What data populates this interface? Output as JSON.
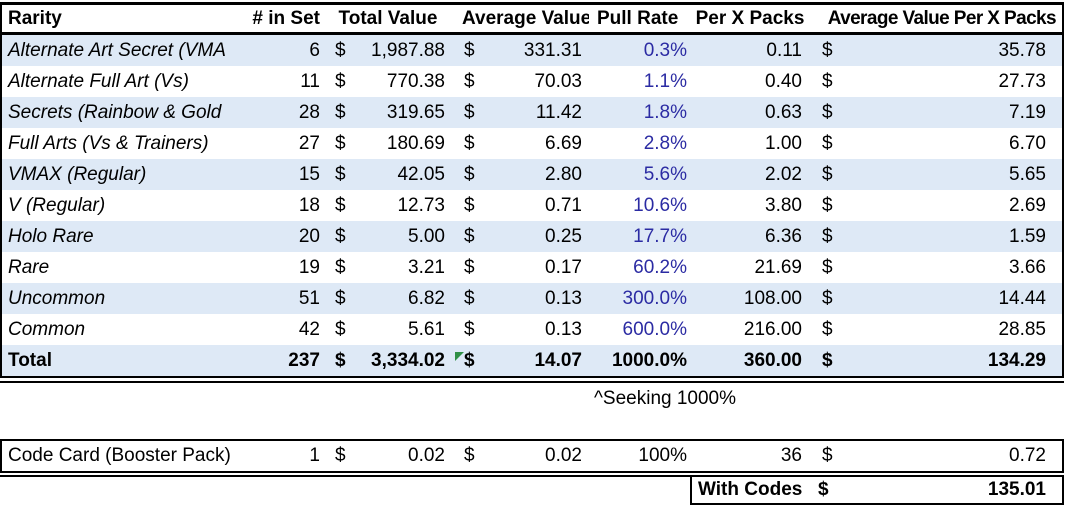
{
  "currency_symbol": "$",
  "colors": {
    "band": "#DEE9F6",
    "pull_rate_text": "#2B2BA3",
    "border": "#000000",
    "error_flag": "#2F8F46"
  },
  "main_table": {
    "headers": {
      "rarity": "Rarity",
      "in_set": "# in Set",
      "total_value": "Total Value",
      "avg_value": "Average Value",
      "pull_rate": "Pull Rate",
      "per_x": "Per X Packs",
      "avg_per_x": "Average Value Per X Packs"
    },
    "rows": [
      {
        "rarity": "Alternate Art Secret (VMA",
        "in_set": "6",
        "total_value": "1,987.88",
        "avg_value": "331.31",
        "pull_rate": "0.3%",
        "per_x": "0.11",
        "avg_per_x": "35.78"
      },
      {
        "rarity": "Alternate Full Art (Vs)",
        "in_set": "11",
        "total_value": "770.38",
        "avg_value": "70.03",
        "pull_rate": "1.1%",
        "per_x": "0.40",
        "avg_per_x": "27.73"
      },
      {
        "rarity": "Secrets (Rainbow & Gold",
        "in_set": "28",
        "total_value": "319.65",
        "avg_value": "11.42",
        "pull_rate": "1.8%",
        "per_x": "0.63",
        "avg_per_x": "7.19"
      },
      {
        "rarity": "Full Arts (Vs & Trainers)",
        "in_set": "27",
        "total_value": "180.69",
        "avg_value": "6.69",
        "pull_rate": "2.8%",
        "per_x": "1.00",
        "avg_per_x": "6.70"
      },
      {
        "rarity": "VMAX (Regular)",
        "in_set": "15",
        "total_value": "42.05",
        "avg_value": "2.80",
        "pull_rate": "5.6%",
        "per_x": "2.02",
        "avg_per_x": "5.65"
      },
      {
        "rarity": "V (Regular)",
        "in_set": "18",
        "total_value": "12.73",
        "avg_value": "0.71",
        "pull_rate": "10.6%",
        "per_x": "3.80",
        "avg_per_x": "2.69"
      },
      {
        "rarity": "Holo Rare",
        "in_set": "20",
        "total_value": "5.00",
        "avg_value": "0.25",
        "pull_rate": "17.7%",
        "per_x": "6.36",
        "avg_per_x": "1.59"
      },
      {
        "rarity": "Rare",
        "in_set": "19",
        "total_value": "3.21",
        "avg_value": "0.17",
        "pull_rate": "60.2%",
        "per_x": "21.69",
        "avg_per_x": "3.66"
      },
      {
        "rarity": "Uncommon",
        "in_set": "51",
        "total_value": "6.82",
        "avg_value": "0.13",
        "pull_rate": "300.0%",
        "per_x": "108.00",
        "avg_per_x": "14.44"
      },
      {
        "rarity": "Common",
        "in_set": "42",
        "total_value": "5.61",
        "avg_value": "0.13",
        "pull_rate": "600.0%",
        "per_x": "216.00",
        "avg_per_x": "28.85"
      }
    ],
    "total_row": {
      "rarity": "Total",
      "in_set": "237",
      "total_value": "3,334.02",
      "avg_value": "14.07",
      "pull_rate": "1000.0%",
      "per_x": "360.00",
      "avg_per_x": "134.29",
      "error_indicator": "error-flag-triangle"
    }
  },
  "note": {
    "text": "^Seeking 1000%"
  },
  "code_card": {
    "row": {
      "rarity": "Code Card (Booster Pack)",
      "in_set": "1",
      "total_value": "0.02",
      "avg_value": "0.02",
      "pull_rate": "100%",
      "per_x": "36",
      "avg_per_x": "0.72"
    }
  },
  "with_codes": {
    "label": "With Codes",
    "value": "135.01"
  }
}
